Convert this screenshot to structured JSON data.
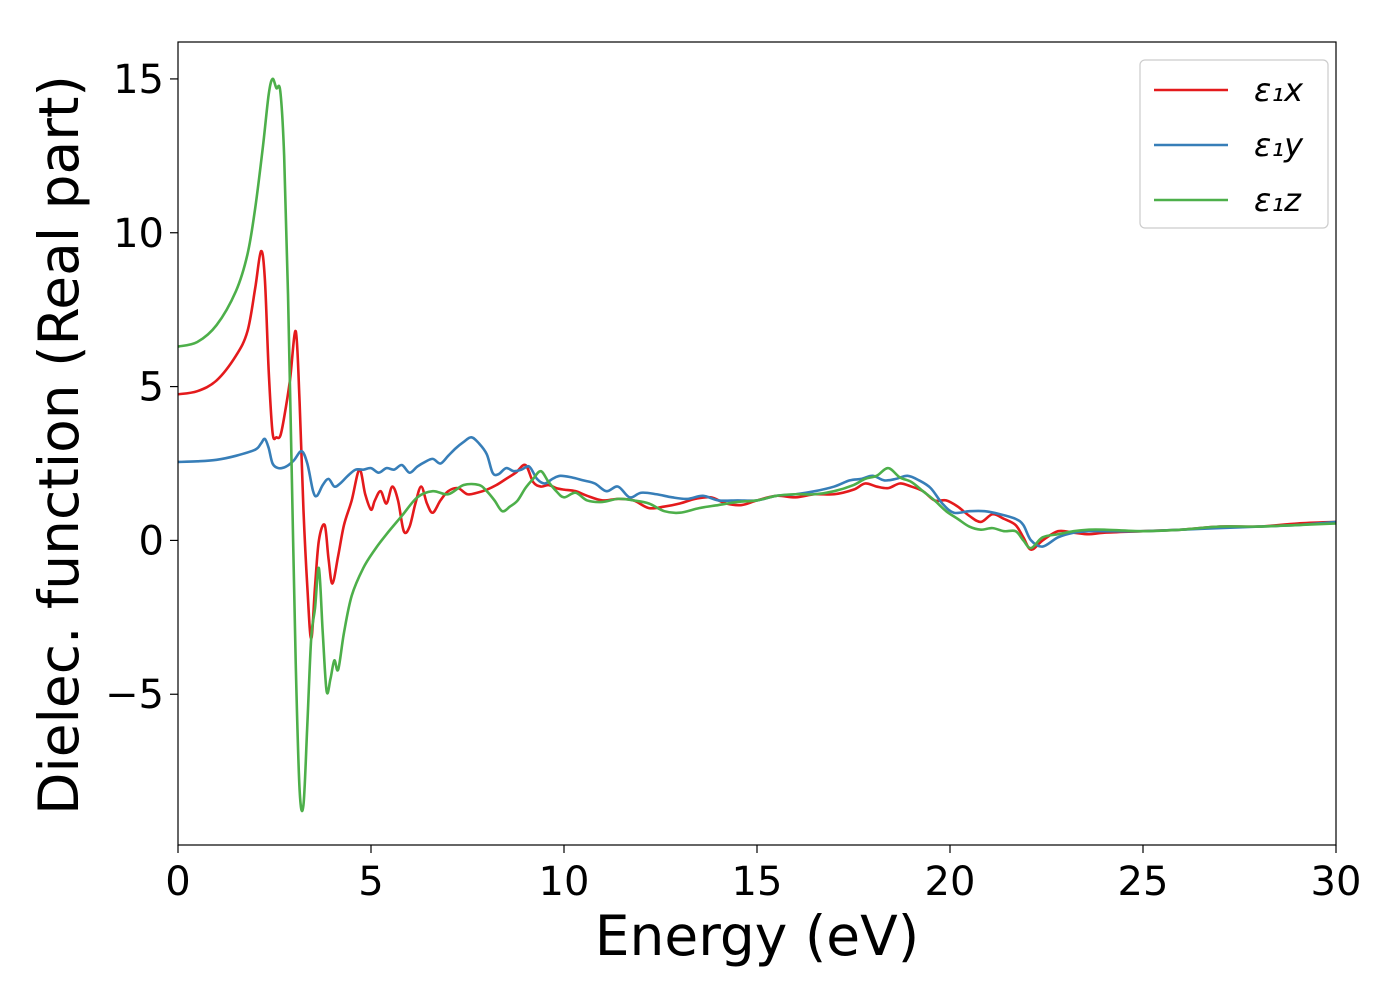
{
  "chart_data": {
    "type": "line",
    "title": "",
    "xlabel": "Energy (eV)",
    "ylabel": "Dielec. function (Real part)",
    "xlim": [
      0,
      30
    ],
    "ylim": [
      -9.9,
      16.2
    ],
    "xticks": [
      0,
      5,
      10,
      15,
      20,
      25,
      30
    ],
    "xtick_labels": [
      "0",
      "5",
      "10",
      "15",
      "20",
      "25",
      "30"
    ],
    "yticks": [
      -5,
      0,
      5,
      10,
      15
    ],
    "ytick_labels": [
      "−5",
      "0",
      "5",
      "10",
      "15"
    ],
    "grid": false,
    "legend_position": "upper-right",
    "series": [
      {
        "name": "ε₁x",
        "color": "#e41a1c",
        "x": [
          0,
          0.5,
          1.0,
          1.5,
          1.8,
          2.0,
          2.15,
          2.25,
          2.35,
          2.45,
          2.55,
          2.65,
          2.75,
          2.9,
          3.05,
          3.15,
          3.25,
          3.35,
          3.45,
          3.55,
          3.65,
          3.8,
          3.9,
          4.0,
          4.15,
          4.3,
          4.5,
          4.7,
          4.85,
          5.0,
          5.1,
          5.25,
          5.4,
          5.55,
          5.7,
          5.85,
          6.0,
          6.15,
          6.3,
          6.45,
          6.6,
          6.8,
          7.0,
          7.25,
          7.5,
          7.75,
          8.0,
          8.25,
          8.5,
          8.75,
          9.0,
          9.2,
          9.4,
          9.6,
          9.8,
          10.0,
          10.3,
          10.6,
          11.0,
          11.4,
          11.8,
          12.2,
          12.6,
          13.0,
          13.4,
          13.8,
          14.2,
          14.6,
          15.0,
          15.5,
          16.0,
          16.5,
          17.0,
          17.5,
          17.8,
          18.1,
          18.4,
          18.7,
          19.0,
          19.3,
          19.6,
          19.9,
          20.2,
          20.5,
          20.8,
          21.1,
          21.4,
          21.7,
          21.9,
          22.1,
          22.4,
          22.8,
          23.2,
          23.6,
          24.0,
          25.0,
          26.0,
          27.0,
          28.0,
          29.0,
          30.0
        ],
        "y": [
          4.75,
          4.85,
          5.2,
          6.0,
          6.8,
          8.2,
          9.4,
          8.5,
          5.5,
          3.5,
          3.35,
          3.4,
          4.0,
          5.2,
          6.8,
          4.5,
          1.0,
          -1.5,
          -3.2,
          -1.5,
          0.0,
          0.5,
          -0.6,
          -1.4,
          -0.5,
          0.5,
          1.3,
          2.3,
          1.5,
          1.0,
          1.3,
          1.6,
          1.2,
          1.75,
          1.3,
          0.3,
          0.45,
          1.2,
          1.75,
          1.2,
          0.9,
          1.3,
          1.6,
          1.7,
          1.5,
          1.55,
          1.65,
          1.8,
          2.0,
          2.2,
          2.45,
          1.9,
          1.75,
          1.8,
          1.7,
          1.65,
          1.6,
          1.45,
          1.3,
          1.35,
          1.3,
          1.05,
          1.1,
          1.2,
          1.35,
          1.4,
          1.2,
          1.15,
          1.3,
          1.45,
          1.4,
          1.5,
          1.5,
          1.65,
          1.85,
          1.75,
          1.7,
          1.85,
          1.75,
          1.6,
          1.3,
          1.3,
          1.1,
          0.8,
          0.6,
          0.85,
          0.7,
          0.5,
          0.1,
          -0.3,
          0.0,
          0.3,
          0.25,
          0.2,
          0.25,
          0.3,
          0.35,
          0.45,
          0.45,
          0.55,
          0.6
        ]
      },
      {
        "name": "ε₁y",
        "color": "#377eb8",
        "x": [
          0,
          0.5,
          1.0,
          1.5,
          2.0,
          2.15,
          2.25,
          2.35,
          2.45,
          2.6,
          2.8,
          3.0,
          3.2,
          3.35,
          3.5,
          3.6,
          3.75,
          3.9,
          4.05,
          4.2,
          4.4,
          4.6,
          4.8,
          5.0,
          5.2,
          5.4,
          5.6,
          5.8,
          6.0,
          6.2,
          6.4,
          6.6,
          6.8,
          7.0,
          7.2,
          7.4,
          7.6,
          7.8,
          8.0,
          8.15,
          8.3,
          8.5,
          8.7,
          8.9,
          9.1,
          9.3,
          9.5,
          9.7,
          9.9,
          10.2,
          10.5,
          10.8,
          11.1,
          11.4,
          11.7,
          12.0,
          12.4,
          12.8,
          13.2,
          13.6,
          14.0,
          14.5,
          15.0,
          15.5,
          16.0,
          16.5,
          17.0,
          17.4,
          17.7,
          18.0,
          18.3,
          18.6,
          18.9,
          19.2,
          19.5,
          19.8,
          20.1,
          20.5,
          20.9,
          21.3,
          21.7,
          21.9,
          22.1,
          22.4,
          22.8,
          23.2,
          23.6,
          24.0,
          25.0,
          26.0,
          27.0,
          28.0,
          29.0,
          30.0
        ],
        "y": [
          2.55,
          2.57,
          2.62,
          2.75,
          2.95,
          3.15,
          3.3,
          3.0,
          2.5,
          2.35,
          2.4,
          2.6,
          2.9,
          2.5,
          1.6,
          1.45,
          1.8,
          2.0,
          1.75,
          1.85,
          2.1,
          2.3,
          2.3,
          2.35,
          2.2,
          2.35,
          2.3,
          2.45,
          2.2,
          2.4,
          2.55,
          2.65,
          2.5,
          2.75,
          3.0,
          3.2,
          3.35,
          3.15,
          2.8,
          2.2,
          2.15,
          2.35,
          2.25,
          2.3,
          2.4,
          2.0,
          1.85,
          2.0,
          2.1,
          2.05,
          1.95,
          1.85,
          1.6,
          1.75,
          1.4,
          1.55,
          1.5,
          1.4,
          1.35,
          1.45,
          1.3,
          1.3,
          1.3,
          1.45,
          1.5,
          1.6,
          1.75,
          1.95,
          2.0,
          2.1,
          1.95,
          2.0,
          2.1,
          1.95,
          1.7,
          1.2,
          0.9,
          0.95,
          0.95,
          0.85,
          0.7,
          0.5,
          0.0,
          -0.2,
          0.1,
          0.25,
          0.3,
          0.3,
          0.3,
          0.35,
          0.4,
          0.45,
          0.5,
          0.6
        ]
      },
      {
        "name": "ε₁z",
        "color": "#4daf4a",
        "x": [
          0,
          0.5,
          1.0,
          1.5,
          1.8,
          2.0,
          2.2,
          2.35,
          2.45,
          2.55,
          2.65,
          2.75,
          2.85,
          2.95,
          3.05,
          3.15,
          3.25,
          3.35,
          3.45,
          3.55,
          3.65,
          3.75,
          3.85,
          3.95,
          4.05,
          4.15,
          4.3,
          4.5,
          4.8,
          5.1,
          5.4,
          5.8,
          6.2,
          6.6,
          7.0,
          7.4,
          7.8,
          8.0,
          8.2,
          8.4,
          8.6,
          8.8,
          9.0,
          9.2,
          9.4,
          9.6,
          9.8,
          10.0,
          10.3,
          10.6,
          11.0,
          11.4,
          11.8,
          12.2,
          12.6,
          13.0,
          13.5,
          14.0,
          14.5,
          15.0,
          15.5,
          16.0,
          16.5,
          17.0,
          17.5,
          17.8,
          18.1,
          18.4,
          18.7,
          19.0,
          19.3,
          19.6,
          19.9,
          20.2,
          20.5,
          20.8,
          21.1,
          21.4,
          21.7,
          21.9,
          22.1,
          22.4,
          22.8,
          23.2,
          23.6,
          24.0,
          25.0,
          26.0,
          27.0,
          28.0,
          29.0,
          30.0
        ],
        "y": [
          6.3,
          6.45,
          7.0,
          8.1,
          9.3,
          10.8,
          12.8,
          14.5,
          15.0,
          14.7,
          14.6,
          12.5,
          8.0,
          2.0,
          -4.0,
          -8.1,
          -8.6,
          -6.0,
          -3.2,
          -2.2,
          -0.9,
          -3.0,
          -4.9,
          -4.5,
          -3.9,
          -4.2,
          -3.0,
          -1.8,
          -0.9,
          -0.3,
          0.2,
          0.8,
          1.4,
          1.6,
          1.5,
          1.8,
          1.8,
          1.6,
          1.3,
          0.95,
          1.1,
          1.3,
          1.7,
          2.0,
          2.25,
          1.9,
          1.6,
          1.4,
          1.55,
          1.3,
          1.25,
          1.35,
          1.3,
          1.2,
          0.95,
          0.9,
          1.05,
          1.15,
          1.25,
          1.3,
          1.45,
          1.5,
          1.5,
          1.6,
          1.8,
          2.0,
          2.1,
          2.35,
          2.05,
          1.9,
          1.6,
          1.3,
          0.95,
          0.7,
          0.45,
          0.35,
          0.4,
          0.3,
          0.3,
          0.0,
          -0.25,
          0.1,
          0.2,
          0.3,
          0.35,
          0.35,
          0.3,
          0.35,
          0.45,
          0.45,
          0.5,
          0.55
        ]
      }
    ]
  }
}
